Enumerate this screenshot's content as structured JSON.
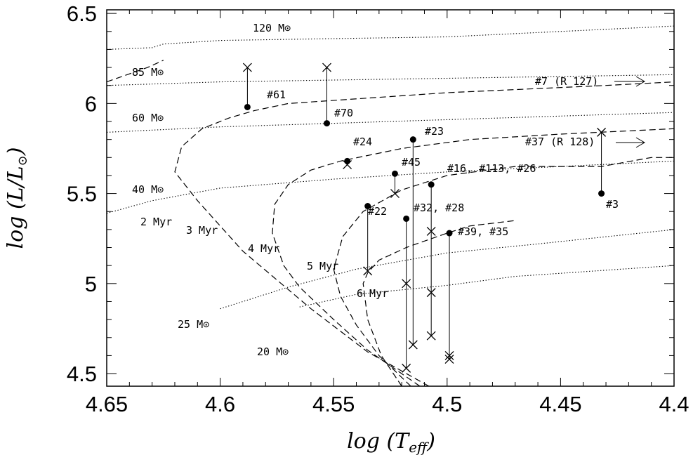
{
  "chart_data": {
    "type": "scatter",
    "title": "",
    "xlabel": "log (T_eff)",
    "ylabel": "log (L/L⊙)",
    "xlim": [
      4.65,
      4.4
    ],
    "ylim": [
      4.43,
      6.52
    ],
    "x_ticks": [
      4.65,
      4.6,
      4.55,
      4.5,
      4.45,
      4.4
    ],
    "x_tick_labels": [
      "4.65",
      "4.6",
      "4.55",
      "4.5",
      "4.45",
      "4.4"
    ],
    "y_ticks": [
      4.5,
      5,
      5.5,
      6,
      6.5
    ],
    "y_tick_labels": [
      "4.5",
      "5",
      "5.5",
      "6",
      "6.5"
    ],
    "grid": false,
    "stars": [
      {
        "label": "#61",
        "filled": [
          4.588,
          5.98
        ],
        "cross": [
          4.588,
          6.2
        ]
      },
      {
        "label": "#70",
        "filled": [
          4.553,
          5.89
        ],
        "cross": [
          4.553,
          6.2
        ]
      },
      {
        "label": "#24",
        "filled": [
          4.544,
          5.68
        ],
        "cross": [
          4.544,
          5.66
        ]
      },
      {
        "label": "#45",
        "filled": [
          4.523,
          5.61
        ],
        "cross": [
          4.523,
          5.5
        ]
      },
      {
        "label": "#22",
        "filled": [
          4.535,
          5.43
        ],
        "cross": [
          4.535,
          5.07
        ]
      },
      {
        "label": "#23",
        "filled": [
          4.515,
          5.8
        ],
        "cross": [
          4.515,
          4.66
        ]
      },
      {
        "label": "#32",
        "filled": [
          4.518,
          5.36
        ],
        "cross": [
          4.518,
          5.0
        ],
        "cross2": [
          4.518,
          4.53
        ]
      },
      {
        "label": "#28",
        "filled": [
          4.507,
          5.55
        ],
        "cross": [
          4.507,
          5.29
        ],
        "cross2": [
          4.507,
          4.95
        ],
        "cross3": [
          4.507,
          4.71
        ]
      },
      {
        "label": "#35",
        "filled": [
          4.499,
          5.28
        ],
        "cross": [
          4.499,
          4.6
        ],
        "cross2": [
          4.499,
          4.58
        ]
      },
      {
        "label": "#3",
        "filled": [
          4.432,
          5.5
        ],
        "cross": [
          4.432,
          5.84
        ]
      }
    ],
    "arrows": [
      {
        "label": "#7 (R 127)",
        "y": 6.1
      },
      {
        "label": "#37 (R 128)",
        "y": 5.76
      }
    ],
    "isochrones": [
      {
        "name": "2 Myr",
        "points": [
          [
            4.65,
            6.12
          ],
          [
            4.632,
            6.2
          ],
          [
            4.625,
            6.24
          ]
        ]
      },
      {
        "name": "3 Myr",
        "points": [
          [
            4.508,
            4.43
          ],
          [
            4.535,
            4.62
          ],
          [
            4.56,
            4.86
          ],
          [
            4.59,
            5.18
          ],
          [
            4.61,
            5.46
          ],
          [
            4.62,
            5.62
          ],
          [
            4.617,
            5.76
          ],
          [
            4.608,
            5.86
          ],
          [
            4.596,
            5.92
          ],
          [
            4.585,
            5.96
          ],
          [
            4.57,
            6.0
          ],
          [
            4.5,
            6.06
          ],
          [
            4.43,
            6.1
          ],
          [
            4.4,
            6.12
          ]
        ]
      },
      {
        "name": "4 Myr",
        "points": [
          [
            4.512,
            4.43
          ],
          [
            4.535,
            4.63
          ],
          [
            4.55,
            4.8
          ],
          [
            4.565,
            4.98
          ],
          [
            4.572,
            5.1
          ],
          [
            4.577,
            5.28
          ],
          [
            4.576,
            5.44
          ],
          [
            4.57,
            5.55
          ],
          [
            4.56,
            5.63
          ],
          [
            4.547,
            5.68
          ],
          [
            4.52,
            5.75
          ],
          [
            4.49,
            5.8
          ],
          [
            4.45,
            5.83
          ],
          [
            4.4,
            5.86
          ]
        ]
      },
      {
        "name": "5 Myr",
        "points": [
          [
            4.516,
            4.43
          ],
          [
            4.53,
            4.6
          ],
          [
            4.54,
            4.77
          ],
          [
            4.547,
            4.93
          ],
          [
            4.55,
            5.08
          ],
          [
            4.546,
            5.26
          ],
          [
            4.537,
            5.4
          ],
          [
            4.52,
            5.52
          ],
          [
            4.5,
            5.6
          ],
          [
            4.47,
            5.65
          ],
          [
            4.432,
            5.65
          ],
          [
            4.41,
            5.7
          ],
          [
            4.4,
            5.7
          ]
        ]
      },
      {
        "name": "6 Myr",
        "points": [
          [
            4.52,
            4.43
          ],
          [
            4.529,
            4.6
          ],
          [
            4.535,
            4.8
          ],
          [
            4.537,
            5.0
          ],
          [
            4.535,
            5.06
          ],
          [
            4.53,
            5.13
          ],
          [
            4.518,
            5.2
          ],
          [
            4.5,
            5.28
          ],
          [
            4.49,
            5.32
          ],
          [
            4.47,
            5.35
          ]
        ]
      }
    ],
    "tracks": [
      {
        "name": "20 M⊙",
        "points": [
          [
            4.565,
            4.87
          ],
          [
            4.54,
            4.94
          ],
          [
            4.5,
            4.99
          ],
          [
            4.47,
            5.04
          ],
          [
            4.4,
            5.1
          ]
        ]
      },
      {
        "name": "25 M⊙",
        "points": [
          [
            4.6,
            4.86
          ],
          [
            4.57,
            4.98
          ],
          [
            4.54,
            5.08
          ],
          [
            4.5,
            5.17
          ],
          [
            4.46,
            5.22
          ],
          [
            4.4,
            5.3
          ]
        ]
      },
      {
        "name": "40 M⊙",
        "points": [
          [
            4.65,
            5.39
          ],
          [
            4.63,
            5.46
          ],
          [
            4.6,
            5.53
          ],
          [
            4.55,
            5.58
          ],
          [
            4.5,
            5.62
          ],
          [
            4.45,
            5.65
          ],
          [
            4.4,
            5.68
          ]
        ]
      },
      {
        "name": "60 M⊙",
        "points": [
          [
            4.65,
            5.84
          ],
          [
            4.6,
            5.87
          ],
          [
            4.55,
            5.89
          ],
          [
            4.5,
            5.91
          ],
          [
            4.45,
            5.93
          ],
          [
            4.4,
            5.95
          ]
        ]
      },
      {
        "name": "85 M⊙",
        "points": [
          [
            4.65,
            6.1
          ],
          [
            4.6,
            6.12
          ],
          [
            4.55,
            6.13
          ],
          [
            4.5,
            6.14
          ],
          [
            4.45,
            6.15
          ],
          [
            4.4,
            6.16
          ]
        ]
      },
      {
        "name": "120 M⊙",
        "points": [
          [
            4.65,
            6.3
          ],
          [
            4.63,
            6.31
          ],
          [
            4.625,
            6.33
          ],
          [
            4.6,
            6.35
          ],
          [
            4.55,
            6.36
          ],
          [
            4.5,
            6.37
          ],
          [
            4.45,
            6.4
          ],
          [
            4.4,
            6.43
          ]
        ]
      }
    ],
    "annotations": {
      "m120": "120 M⊙",
      "m85": "85 M⊙",
      "m60": "60 M⊙",
      "m40": "40 M⊙",
      "m25": "25 M⊙",
      "m20": "20 M⊙",
      "myr2": "2 Myr",
      "myr3": "3 Myr",
      "myr4": "4 Myr",
      "myr5": "5 Myr",
      "myr6": "6 Myr",
      "s61": "#61",
      "s70": "#70",
      "s24": "#24",
      "s23": "#23",
      "s45": "#45",
      "s16": "#16, #113, #26",
      "s22": "#22",
      "s32": "#32, #28",
      "s39": "#39, #35",
      "s3": "#3",
      "r127": "#7 (R 127)",
      "r128": "#37 (R 128)"
    }
  }
}
